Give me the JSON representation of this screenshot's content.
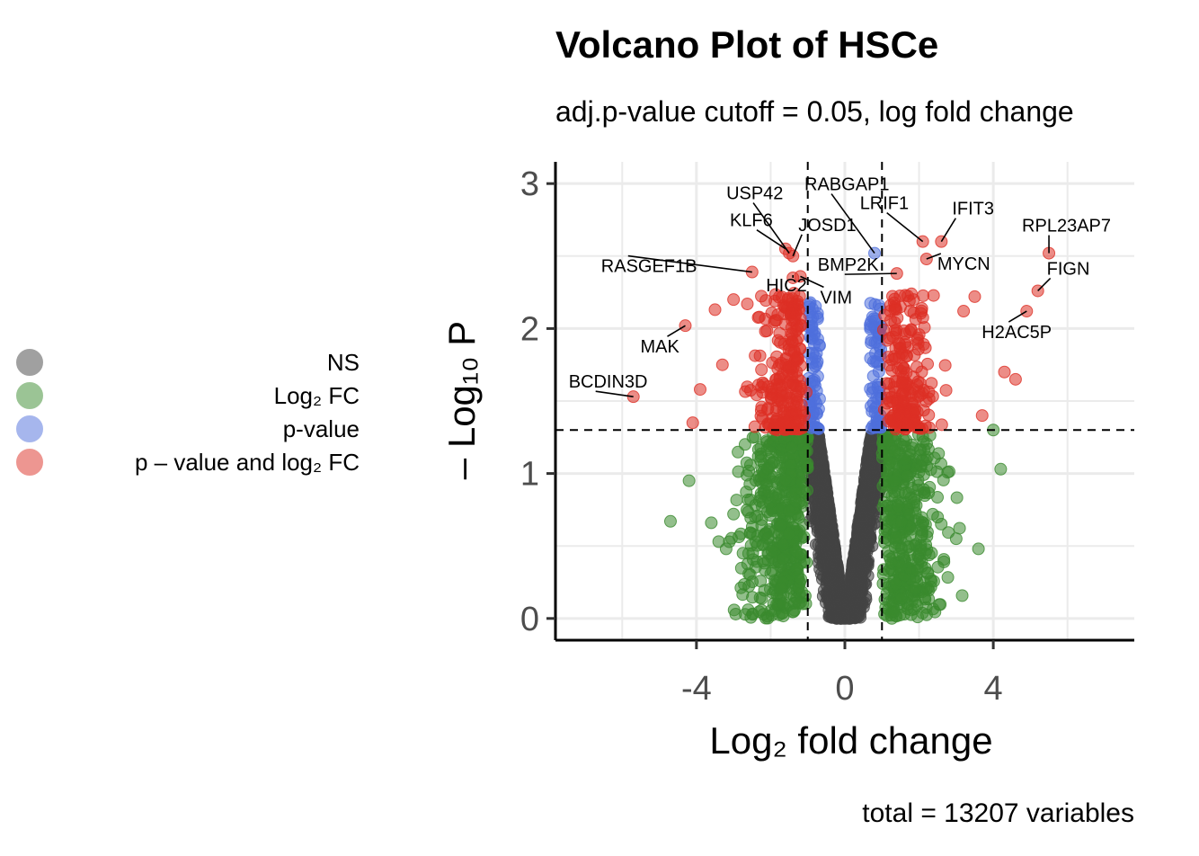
{
  "title": "Volcano Plot of HSCe",
  "subtitle": "adj.p-value cutoff = 0.05, log fold change",
  "caption": "total = 13207 variables",
  "legend": {
    "items": [
      {
        "label": "NS",
        "color": "#444444"
      },
      {
        "label": "Log₂ FC",
        "color": "#3a8a2e"
      },
      {
        "label": "p-value",
        "color": "#4f6fdc"
      },
      {
        "label": "p – value and log₂ FC",
        "color": "#dd2f25"
      }
    ]
  },
  "chart_data": {
    "type": "scatter",
    "xlabel": "Log₂ fold change",
    "ylabel": "– Log₁₀ P",
    "xlim": [
      -7.8,
      7.8
    ],
    "ylim": [
      -0.15,
      3.15
    ],
    "xticks": [
      -4,
      0,
      4
    ],
    "yticks": [
      0,
      1,
      2,
      3
    ],
    "grid": true,
    "legend_position": "left",
    "thresholds": {
      "log2fc": [
        -1,
        1
      ],
      "neg_log10_p": 1.3
    },
    "n_total": 13207,
    "colors": {
      "ns": "#444444",
      "fc": "#3a8a2e",
      "p": "#4f6fdc",
      "both": "#dd2f25"
    },
    "labeled_genes": [
      {
        "gene": "RABGAP1",
        "x": 0.8,
        "y": 2.52
      },
      {
        "gene": "USP42",
        "x": -1.5,
        "y": 2.52
      },
      {
        "gene": "KLF6",
        "x": -1.6,
        "y": 2.55
      },
      {
        "gene": "JOSD1",
        "x": -1.4,
        "y": 2.5
      },
      {
        "gene": "LRIF1",
        "x": 2.1,
        "y": 2.6
      },
      {
        "gene": "IFIT3",
        "x": 2.6,
        "y": 2.6
      },
      {
        "gene": "RPL23AP7",
        "x": 5.5,
        "y": 2.52
      },
      {
        "gene": "RASGEF1B",
        "x": -2.5,
        "y": 2.39
      },
      {
        "gene": "BMP2K",
        "x": 1.4,
        "y": 2.38
      },
      {
        "gene": "MYCN",
        "x": 2.2,
        "y": 2.48
      },
      {
        "gene": "FIGN",
        "x": 5.2,
        "y": 2.26
      },
      {
        "gene": "HIC2",
        "x": -1.4,
        "y": 2.35
      },
      {
        "gene": "VIM",
        "x": -1.2,
        "y": 2.36
      },
      {
        "gene": "H2AC5P",
        "x": 4.9,
        "y": 2.12
      },
      {
        "gene": "MAK",
        "x": -4.3,
        "y": 2.02
      },
      {
        "gene": "BCDIN3D",
        "x": -5.7,
        "y": 1.53
      }
    ],
    "extra_points": [
      {
        "x": -4.7,
        "y": 0.67
      },
      {
        "x": -4.2,
        "y": 0.95
      },
      {
        "x": -3.6,
        "y": 0.66
      },
      {
        "x": -3.4,
        "y": 0.53
      },
      {
        "x": -3.2,
        "y": 0.48
      },
      {
        "x": -3.0,
        "y": 0.72
      },
      {
        "x": 3.6,
        "y": 0.48
      },
      {
        "x": 4.2,
        "y": 1.03
      },
      {
        "x": 3.0,
        "y": 0.55
      },
      {
        "x": -3.9,
        "y": 1.58
      },
      {
        "x": -4.1,
        "y": 1.35
      },
      {
        "x": -3.3,
        "y": 1.75
      },
      {
        "x": 4.3,
        "y": 1.7
      },
      {
        "x": 4.6,
        "y": 1.65
      },
      {
        "x": 3.7,
        "y": 1.4
      },
      {
        "x": 4.0,
        "y": 1.3
      },
      {
        "x": -3.0,
        "y": 2.2
      },
      {
        "x": -3.5,
        "y": 2.13
      },
      {
        "x": 3.5,
        "y": 2.22
      },
      {
        "x": 3.2,
        "y": 2.12
      }
    ]
  }
}
